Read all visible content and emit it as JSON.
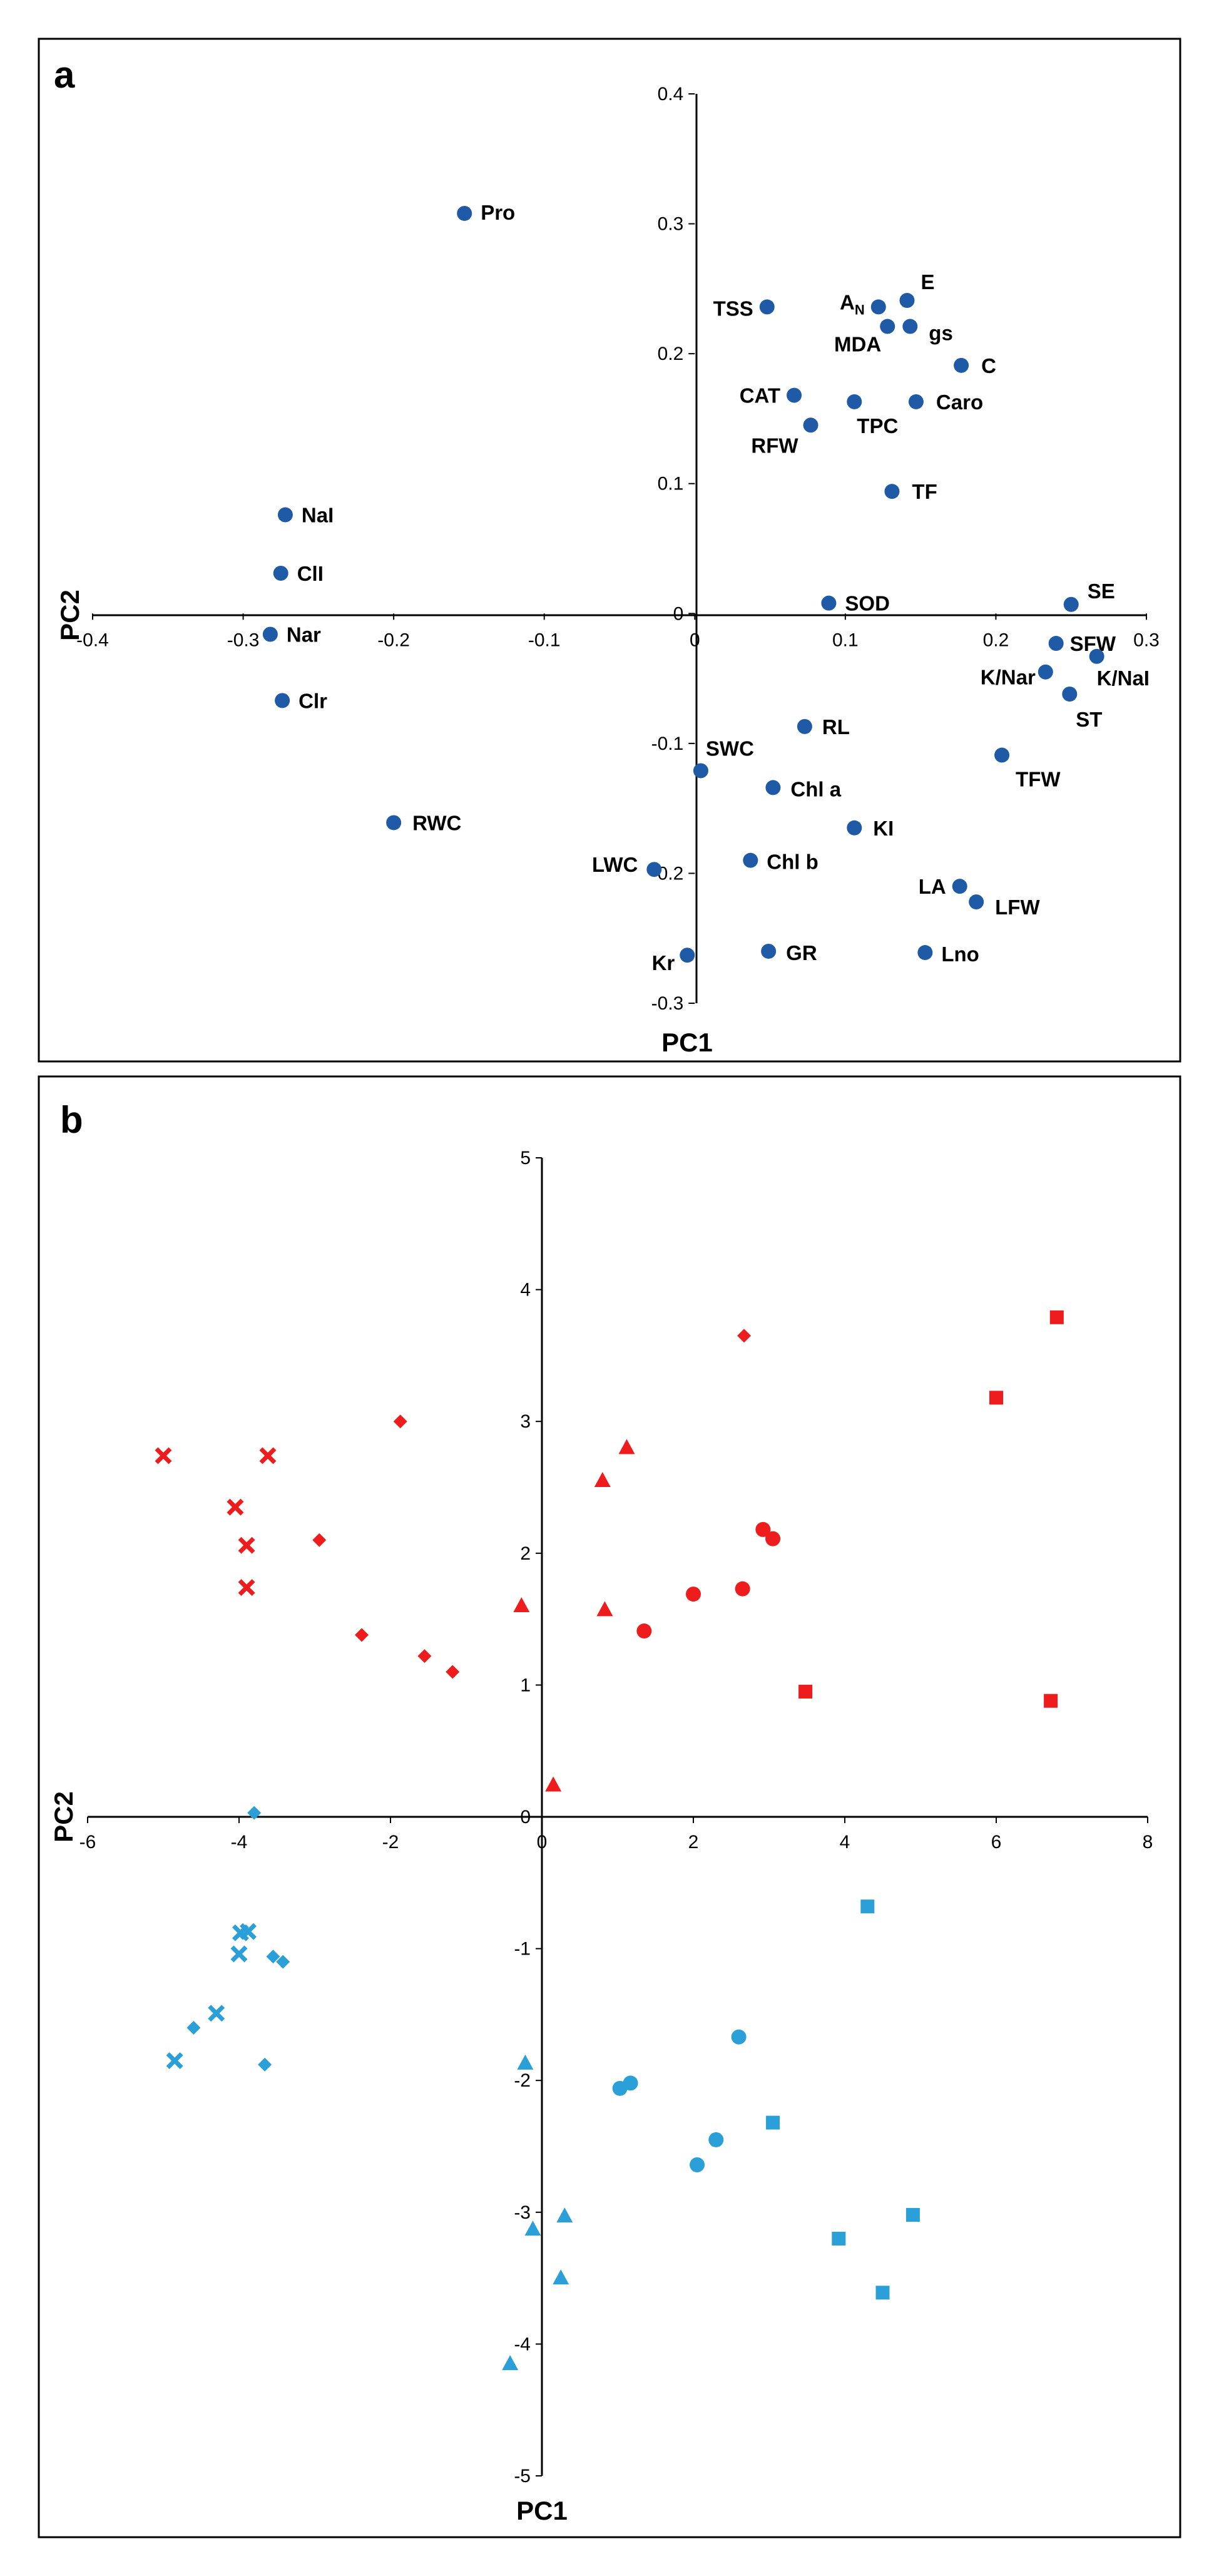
{
  "chart_data": [
    {
      "type": "scatter",
      "panel_label": "a",
      "title": "",
      "xlabel": "PC1",
      "ylabel": "PC2",
      "xlim": [
        -0.4,
        0.3
      ],
      "ylim": [
        -0.3,
        0.4
      ],
      "xticks": [
        "-0.4",
        "-0.3",
        "-0.2",
        "-0.1",
        "0",
        "0.1",
        "0.2",
        "0.3"
      ],
      "yticks": [
        "0.4",
        "0.3",
        "0.2",
        "0.1",
        "0",
        "-0.1",
        "-0.2",
        "-0.3"
      ],
      "grid": false,
      "marker_color": "#1f5aa6",
      "points": [
        {
          "label": "Pro",
          "x": -0.153,
          "y": 0.308
        },
        {
          "label": "TSS",
          "x": 0.048,
          "y": 0.236
        },
        {
          "label": "AN",
          "x": 0.122,
          "y": 0.236
        },
        {
          "label": "E",
          "x": 0.141,
          "y": 0.241
        },
        {
          "label": "MDA",
          "x": 0.128,
          "y": 0.221
        },
        {
          "label": "gs",
          "x": 0.143,
          "y": 0.221
        },
        {
          "label": "C",
          "x": 0.177,
          "y": 0.191
        },
        {
          "label": "CAT",
          "x": 0.066,
          "y": 0.168
        },
        {
          "label": "TPC",
          "x": 0.106,
          "y": 0.163
        },
        {
          "label": "Caro",
          "x": 0.147,
          "y": 0.163
        },
        {
          "label": "RFW",
          "x": 0.077,
          "y": 0.145
        },
        {
          "label": "TF",
          "x": 0.131,
          "y": 0.094
        },
        {
          "label": "NaI",
          "x": -0.272,
          "y": 0.076
        },
        {
          "label": "ClI",
          "x": -0.275,
          "y": 0.031
        },
        {
          "label": "Nar",
          "x": -0.282,
          "y": -0.016
        },
        {
          "label": "Clr",
          "x": -0.274,
          "y": -0.067
        },
        {
          "label": "SOD",
          "x": 0.089,
          "y": 0.008
        },
        {
          "label": "SE",
          "x": 0.25,
          "y": 0.007
        },
        {
          "label": "SFW",
          "x": 0.24,
          "y": -0.023
        },
        {
          "label": "K/Nar",
          "x": 0.233,
          "y": -0.045
        },
        {
          "label": "K/NaI",
          "x": 0.267,
          "y": -0.033
        },
        {
          "label": "ST",
          "x": 0.249,
          "y": -0.062
        },
        {
          "label": "RL",
          "x": 0.073,
          "y": -0.087
        },
        {
          "label": "TFW",
          "x": 0.204,
          "y": -0.109
        },
        {
          "label": "SWC",
          "x": 0.004,
          "y": -0.121
        },
        {
          "label": "Chl a",
          "x": 0.052,
          "y": -0.134
        },
        {
          "label": "RWC",
          "x": -0.2,
          "y": -0.161
        },
        {
          "label": "KI",
          "x": 0.106,
          "y": -0.165
        },
        {
          "label": "Chl b",
          "x": 0.037,
          "y": -0.19
        },
        {
          "label": "LWC",
          "x": -0.027,
          "y": -0.197
        },
        {
          "label": "LA",
          "x": 0.176,
          "y": -0.21
        },
        {
          "label": "LFW",
          "x": 0.187,
          "y": -0.222
        },
        {
          "label": "Kr",
          "x": -0.005,
          "y": -0.263
        },
        {
          "label": "GR",
          "x": 0.049,
          "y": -0.26
        },
        {
          "label": "Lno",
          "x": 0.153,
          "y": -0.261
        }
      ]
    },
    {
      "type": "scatter",
      "panel_label": "b",
      "title": "",
      "xlabel": "PC1",
      "ylabel": "PC2",
      "xlim": [
        -6,
        8
      ],
      "ylim": [
        -5,
        5
      ],
      "xticks": [
        "-6",
        "-4",
        "-2",
        "0",
        "2",
        "4",
        "6",
        "8"
      ],
      "yticks": [
        "5",
        "4",
        "3",
        "2",
        "1",
        "0",
        "-1",
        "-2",
        "-3",
        "-4",
        "-5"
      ],
      "grid": false,
      "series": [
        {
          "name": "red-x",
          "color": "#ee1c1c",
          "marker": "x",
          "points": [
            [
              -5.0,
              2.74
            ],
            [
              -3.62,
              2.74
            ],
            [
              -4.05,
              2.35
            ],
            [
              -3.9,
              2.06
            ],
            [
              -3.9,
              1.74
            ]
          ]
        },
        {
          "name": "red-diamond",
          "color": "#ee1c1c",
          "marker": "diamond",
          "points": [
            [
              -1.87,
              3.0
            ],
            [
              -2.94,
              2.1
            ],
            [
              -2.38,
              1.38
            ],
            [
              -1.55,
              1.22
            ],
            [
              -1.18,
              1.1
            ],
            [
              2.67,
              3.65
            ]
          ]
        },
        {
          "name": "red-triangle",
          "color": "#ee1c1c",
          "marker": "triangle",
          "points": [
            [
              1.12,
              2.8
            ],
            [
              0.8,
              2.55
            ],
            [
              -0.27,
              1.6
            ],
            [
              0.83,
              1.57
            ],
            [
              0.15,
              0.24
            ]
          ]
        },
        {
          "name": "red-circle",
          "color": "#ee1c1c",
          "marker": "circle",
          "points": [
            [
              2.92,
              2.18
            ],
            [
              3.05,
              2.11
            ],
            [
              2.0,
              1.69
            ],
            [
              2.65,
              1.73
            ],
            [
              1.35,
              1.41
            ]
          ]
        },
        {
          "name": "red-square",
          "color": "#ee1c1c",
          "marker": "square",
          "points": [
            [
              6.8,
              3.79
            ],
            [
              6.0,
              3.18
            ],
            [
              3.48,
              0.95
            ],
            [
              6.72,
              0.88
            ]
          ]
        },
        {
          "name": "blue-x",
          "color": "#2a9fd8",
          "marker": "x",
          "points": [
            [
              -3.88,
              -0.87
            ],
            [
              -3.98,
              -0.88
            ],
            [
              -4.0,
              -1.04
            ],
            [
              -4.3,
              -1.49
            ],
            [
              -4.85,
              -1.85
            ]
          ]
        },
        {
          "name": "blue-diamond",
          "color": "#2a9fd8",
          "marker": "diamond",
          "points": [
            [
              -3.8,
              0.03
            ],
            [
              -3.55,
              -1.06
            ],
            [
              -3.42,
              -1.1
            ],
            [
              -4.6,
              -1.6
            ],
            [
              -3.66,
              -1.88
            ]
          ]
        },
        {
          "name": "blue-triangle",
          "color": "#2a9fd8",
          "marker": "triangle",
          "points": [
            [
              -0.22,
              -1.87
            ],
            [
              -0.12,
              -3.13
            ],
            [
              0.3,
              -3.03
            ],
            [
              0.25,
              -3.5
            ],
            [
              -0.42,
              -4.15
            ]
          ]
        },
        {
          "name": "blue-circle",
          "color": "#2a9fd8",
          "marker": "circle",
          "points": [
            [
              2.6,
              -1.67
            ],
            [
              1.17,
              -2.02
            ],
            [
              1.03,
              -2.06
            ],
            [
              2.3,
              -2.45
            ],
            [
              2.05,
              -2.64
            ]
          ]
        },
        {
          "name": "blue-square",
          "color": "#2a9fd8",
          "marker": "square",
          "points": [
            [
              4.3,
              -0.68
            ],
            [
              3.05,
              -2.32
            ],
            [
              4.9,
              -3.02
            ],
            [
              3.92,
              -3.2
            ],
            [
              4.5,
              -3.61
            ]
          ]
        }
      ]
    }
  ]
}
